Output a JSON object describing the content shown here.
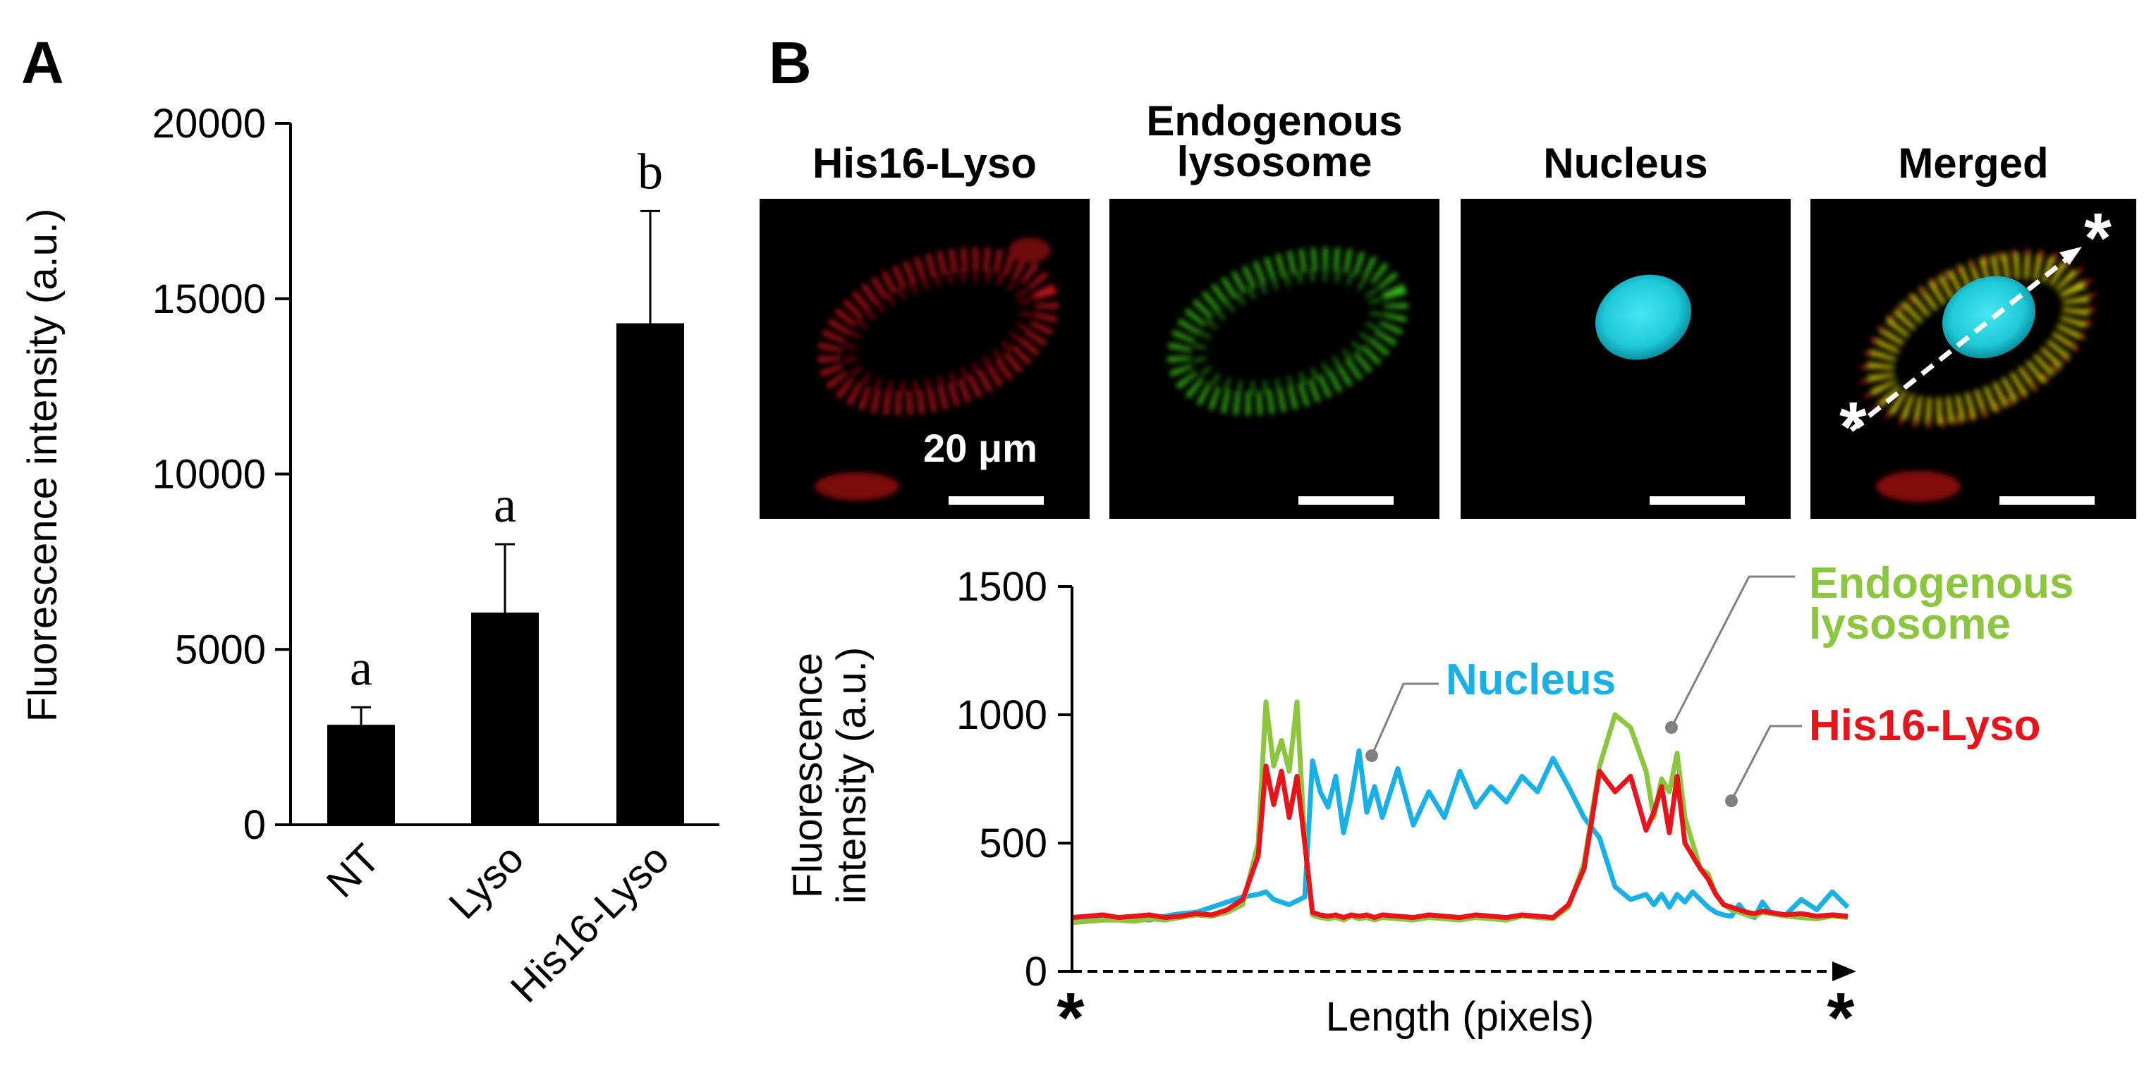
{
  "panels": {
    "a": "A",
    "b": "B"
  },
  "colors": {
    "bar": "#000000",
    "his16_lyso": "#e8141b",
    "endogenous_lysosome": "#8cc63f",
    "nucleus": "#19b0e6",
    "micrograph_bg": "#000000",
    "callout_dot": "#808080"
  },
  "chart_data": [
    {
      "type": "bar",
      "panel": "A",
      "categories": [
        "NT",
        "Lyso",
        "His16-Lyso"
      ],
      "values": [
        2850,
        6050,
        14300
      ],
      "errors": [
        500,
        1950,
        3200
      ],
      "significance_labels": [
        "a",
        "a",
        "b"
      ],
      "ylabel": "Fluorescence intensity (a.u.)",
      "ylim": [
        0,
        20000
      ],
      "yticks": [
        0,
        5000,
        10000,
        15000,
        20000
      ],
      "grid": false,
      "legend": "none"
    },
    {
      "type": "line",
      "panel": "B",
      "xlabel": "Length (pixels)",
      "ylabel": "Fluorescence intensity (a.u.)",
      "ylim": [
        0,
        1500
      ],
      "yticks": [
        0,
        500,
        1000,
        1500
      ],
      "x_end_labels": [
        "*",
        "*"
      ],
      "xlim": [
        0,
        100
      ],
      "x": [
        0,
        2,
        4,
        6,
        8,
        10,
        12,
        14,
        16,
        18,
        20,
        22,
        24,
        25,
        26,
        27,
        28,
        29,
        30,
        31,
        32,
        33,
        34,
        35,
        36,
        37,
        38,
        39,
        40,
        42,
        44,
        46,
        48,
        50,
        52,
        54,
        56,
        58,
        60,
        62,
        64,
        66,
        68,
        70,
        72,
        74,
        75,
        76,
        77,
        78,
        79,
        80,
        81,
        82,
        83,
        84,
        85,
        86,
        87,
        88,
        89,
        90,
        92,
        94,
        96,
        98,
        100
      ],
      "series": [
        {
          "name": "Nucleus",
          "values": [
            200,
            205,
            200,
            210,
            205,
            200,
            215,
            225,
            230,
            250,
            270,
            290,
            300,
            310,
            280,
            270,
            260,
            275,
            290,
            820,
            700,
            640,
            760,
            540,
            680,
            860,
            620,
            720,
            600,
            790,
            570,
            700,
            600,
            780,
            640,
            720,
            660,
            760,
            700,
            830,
            720,
            600,
            520,
            330,
            280,
            300,
            260,
            300,
            250,
            300,
            270,
            310,
            280,
            250,
            230,
            220,
            215,
            260,
            220,
            210,
            270,
            230,
            220,
            280,
            240,
            310,
            250
          ]
        },
        {
          "name": "Endogenous lysosome",
          "values": [
            190,
            195,
            200,
            200,
            195,
            205,
            200,
            210,
            220,
            215,
            230,
            260,
            500,
            1050,
            800,
            900,
            780,
            1050,
            500,
            220,
            210,
            205,
            210,
            200,
            215,
            205,
            210,
            200,
            210,
            205,
            200,
            210,
            205,
            200,
            210,
            205,
            200,
            215,
            210,
            205,
            250,
            420,
            800,
            1000,
            950,
            780,
            600,
            750,
            700,
            850,
            600,
            500,
            400,
            380,
            300,
            260,
            240,
            230,
            220,
            215,
            230,
            225,
            215,
            210,
            205,
            215,
            210
          ]
        },
        {
          "name": "His16-Lyso",
          "values": [
            210,
            215,
            220,
            210,
            215,
            220,
            210,
            215,
            225,
            220,
            240,
            280,
            450,
            800,
            650,
            780,
            600,
            760,
            500,
            230,
            220,
            215,
            220,
            210,
            220,
            215,
            220,
            210,
            220,
            215,
            210,
            220,
            215,
            210,
            220,
            215,
            210,
            220,
            215,
            210,
            260,
            400,
            780,
            700,
            760,
            550,
            620,
            720,
            540,
            760,
            500,
            450,
            400,
            360,
            300,
            260,
            250,
            240,
            230,
            225,
            235,
            230,
            220,
            225,
            215,
            220,
            215
          ]
        }
      ],
      "callouts": [
        "Nucleus",
        "Endogenous\nlysosome",
        "His16-Lyso"
      ]
    }
  ],
  "micrographs": {
    "titles": [
      "His16-Lyso",
      "Endogenous lysosome",
      "Nucleus",
      "Merged"
    ],
    "scale_label": "20 μm",
    "line_scan_markers": [
      "*",
      "*"
    ]
  }
}
